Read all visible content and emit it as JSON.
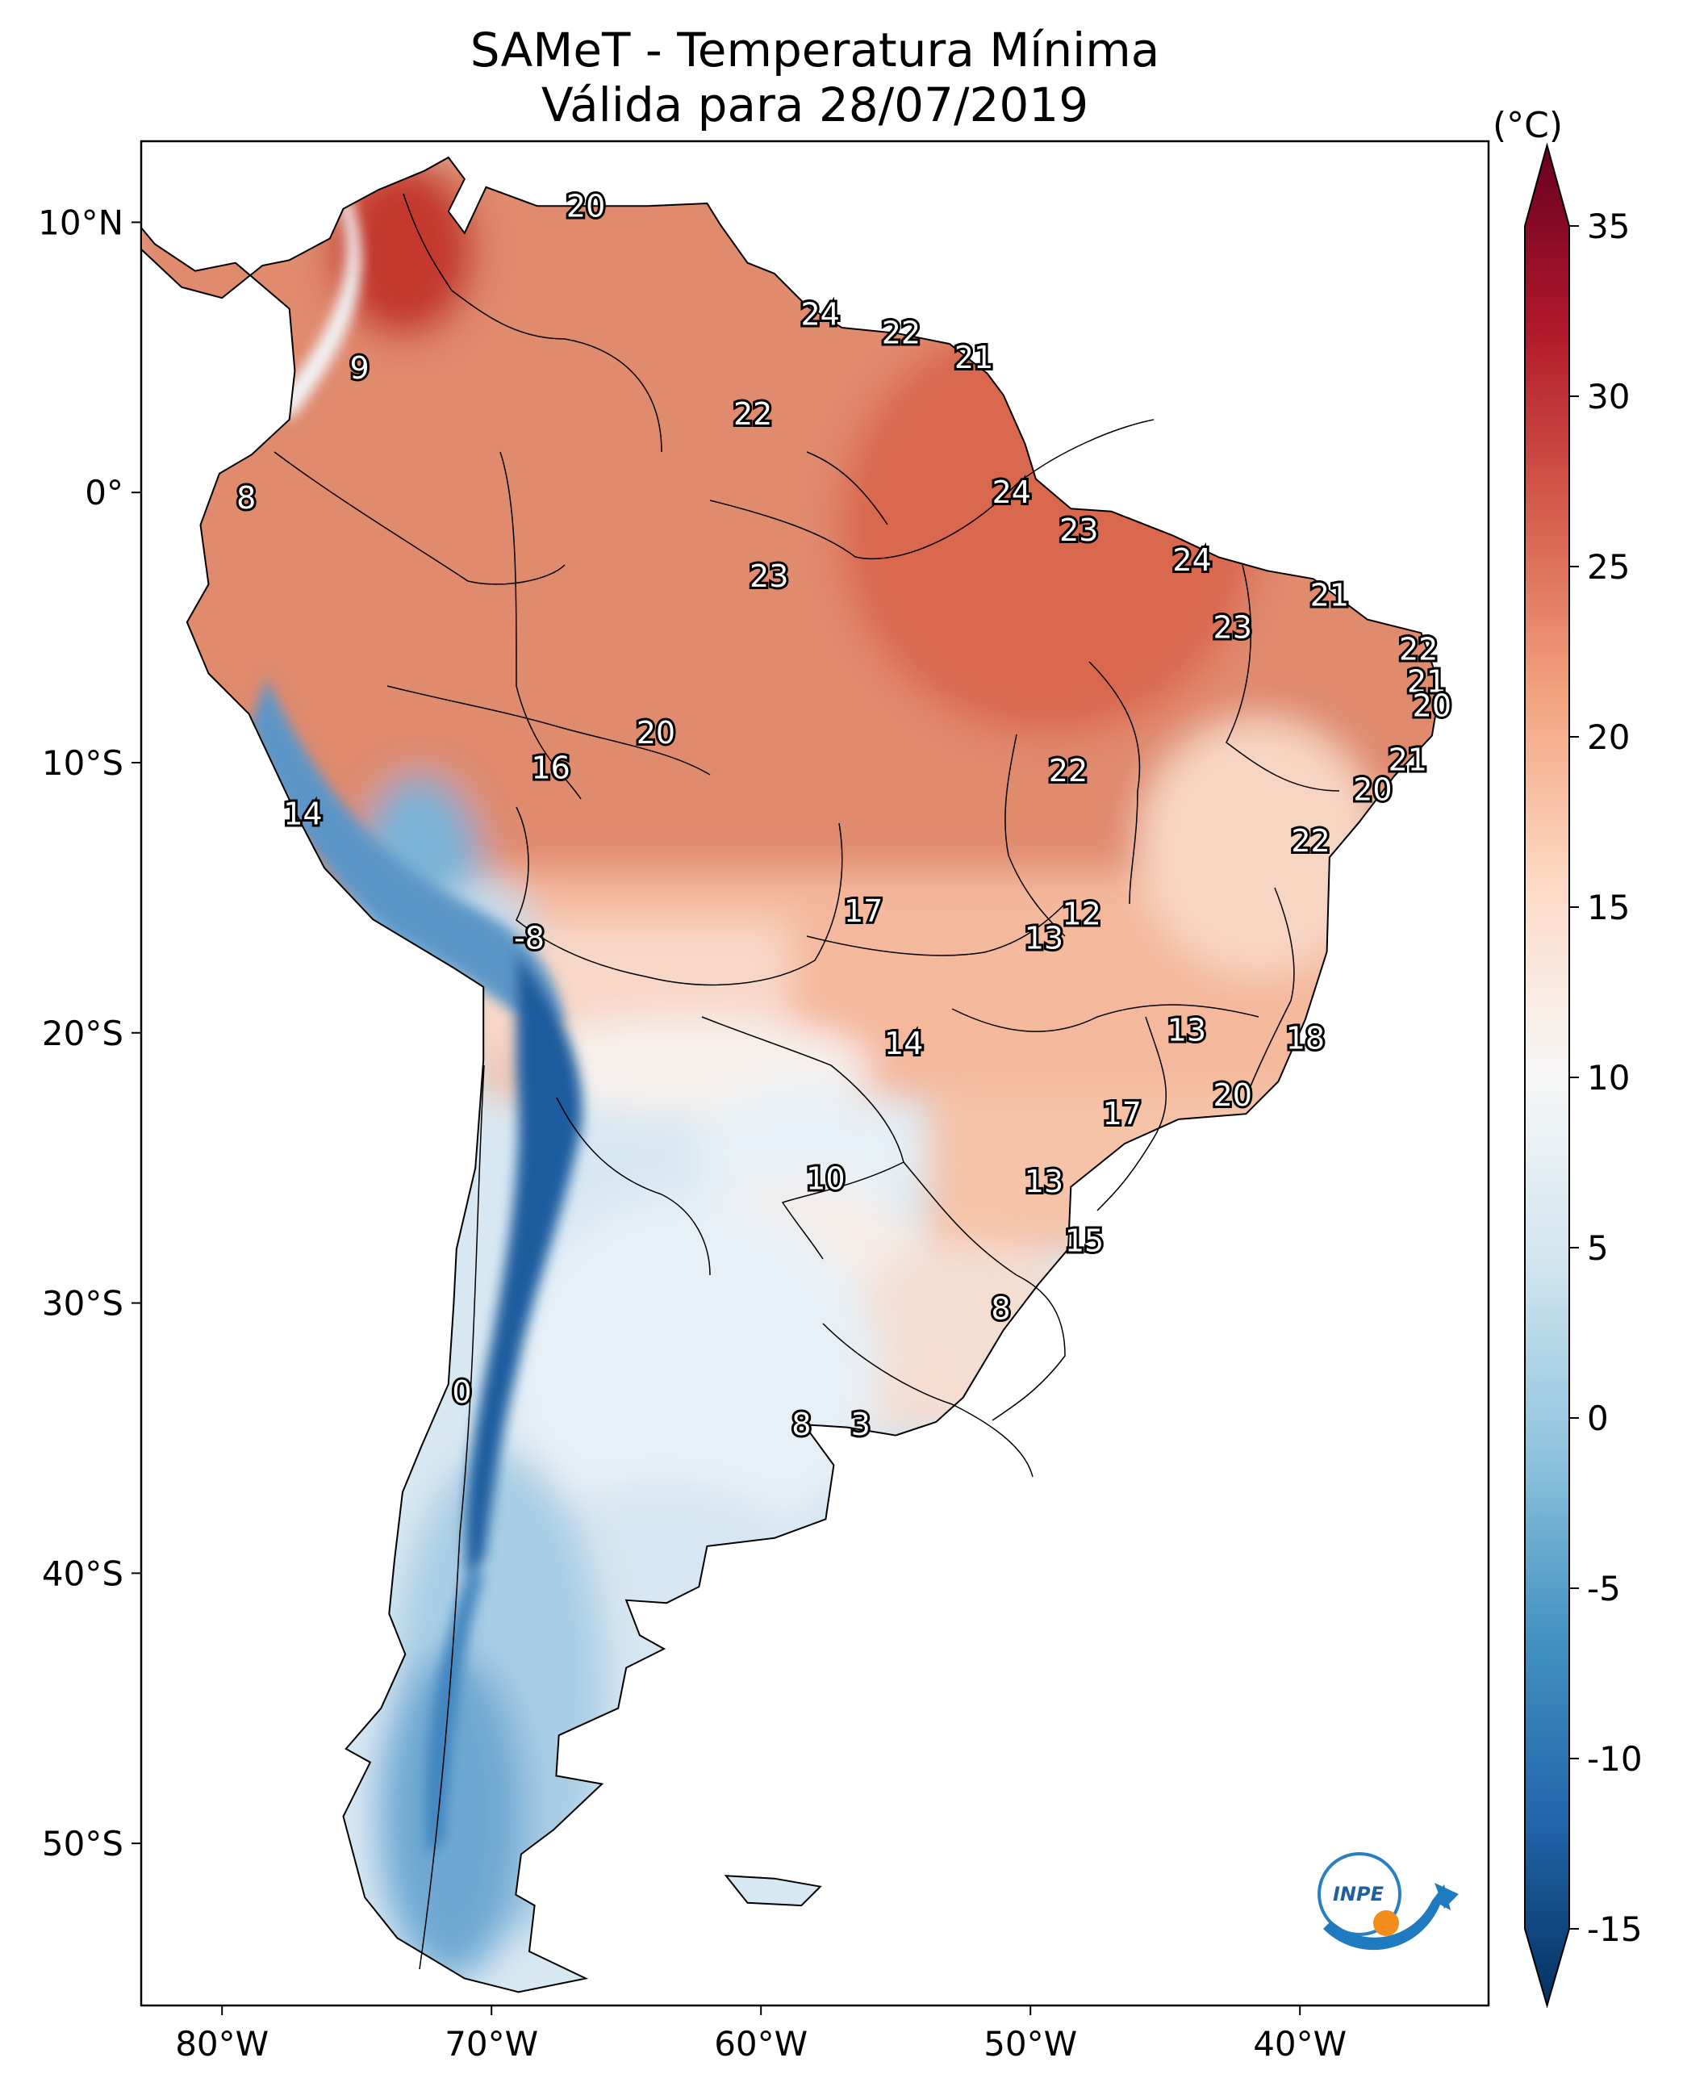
{
  "title": "SAMeT - Temperatura Mínima",
  "subtitle": "Válida para 28/07/2019",
  "colorbar": {
    "unit": "(°C)",
    "range": [
      -15,
      35
    ],
    "ticks": [
      "35",
      "30",
      "25",
      "20",
      "15",
      "10",
      "5",
      "0",
      "-5",
      "-10",
      "-15"
    ],
    "colors": [
      "#053061",
      "#2166ac",
      "#4393c3",
      "#92c5de",
      "#d1e5f0",
      "#f7f7f7",
      "#fddbc7",
      "#f4a582",
      "#d6604d",
      "#b2182b",
      "#67001f"
    ]
  },
  "axes": {
    "lon_ticks": [
      "80°W",
      "70°W",
      "60°W",
      "50°W",
      "40°W"
    ],
    "lat_ticks": [
      "10°N",
      "0°",
      "10°S",
      "20°S",
      "30°S",
      "40°S",
      "50°S"
    ],
    "lon_range": [
      -83,
      -33
    ],
    "lat_range": [
      -56,
      13
    ]
  },
  "labels": [
    {
      "text": "20",
      "lon": -66.5,
      "lat": 10.6
    },
    {
      "text": "24",
      "lon": -57.8,
      "lat": 6.6
    },
    {
      "text": "22",
      "lon": -54.8,
      "lat": 5.9
    },
    {
      "text": "21",
      "lon": -52.1,
      "lat": 5.0
    },
    {
      "text": "9",
      "lon": -74.9,
      "lat": 4.6
    },
    {
      "text": "22",
      "lon": -60.3,
      "lat": 2.9
    },
    {
      "text": "8",
      "lon": -79.1,
      "lat": -0.2
    },
    {
      "text": "24",
      "lon": -50.7,
      "lat": 0.0
    },
    {
      "text": "23",
      "lon": -48.2,
      "lat": -1.4
    },
    {
      "text": "24",
      "lon": -44.0,
      "lat": -2.5
    },
    {
      "text": "23",
      "lon": -59.7,
      "lat": -3.1
    },
    {
      "text": "21",
      "lon": -38.9,
      "lat": -3.8
    },
    {
      "text": "23",
      "lon": -42.5,
      "lat": -5.0
    },
    {
      "text": "22",
      "lon": -35.6,
      "lat": -5.8
    },
    {
      "text": "21",
      "lon": -35.3,
      "lat": -7.0
    },
    {
      "text": "20",
      "lon": -35.1,
      "lat": -7.9
    },
    {
      "text": "20",
      "lon": -63.9,
      "lat": -8.9
    },
    {
      "text": "16",
      "lon": -67.8,
      "lat": -10.2
    },
    {
      "text": "22",
      "lon": -48.6,
      "lat": -10.3
    },
    {
      "text": "21",
      "lon": -36.0,
      "lat": -9.9
    },
    {
      "text": "20",
      "lon": -37.3,
      "lat": -11.0
    },
    {
      "text": "14",
      "lon": -77.0,
      "lat": -11.9
    },
    {
      "text": "22",
      "lon": -39.6,
      "lat": -12.9
    },
    {
      "text": "17",
      "lon": -56.2,
      "lat": -15.5
    },
    {
      "text": "12",
      "lon": -48.1,
      "lat": -15.6
    },
    {
      "text": "13",
      "lon": -49.5,
      "lat": -16.5
    },
    {
      "text": "-8",
      "lon": -68.6,
      "lat": -16.5
    },
    {
      "text": "13",
      "lon": -44.2,
      "lat": -19.9
    },
    {
      "text": "14",
      "lon": -54.7,
      "lat": -20.4
    },
    {
      "text": "18",
      "lon": -39.8,
      "lat": -20.2
    },
    {
      "text": "20",
      "lon": -42.5,
      "lat": -22.3
    },
    {
      "text": "17",
      "lon": -46.6,
      "lat": -23.0
    },
    {
      "text": "10",
      "lon": -57.6,
      "lat": -25.4
    },
    {
      "text": "13",
      "lon": -49.5,
      "lat": -25.5
    },
    {
      "text": "15",
      "lon": -48.0,
      "lat": -27.7
    },
    {
      "text": "8",
      "lon": -51.1,
      "lat": -30.2
    },
    {
      "text": "0",
      "lon": -71.1,
      "lat": -33.3
    },
    {
      "text": "8",
      "lon": -58.5,
      "lat": -34.5
    },
    {
      "text": "3",
      "lon": -56.3,
      "lat": -34.5
    }
  ],
  "logo": {
    "icon": "inpe-logo-icon",
    "text": "INPE"
  }
}
